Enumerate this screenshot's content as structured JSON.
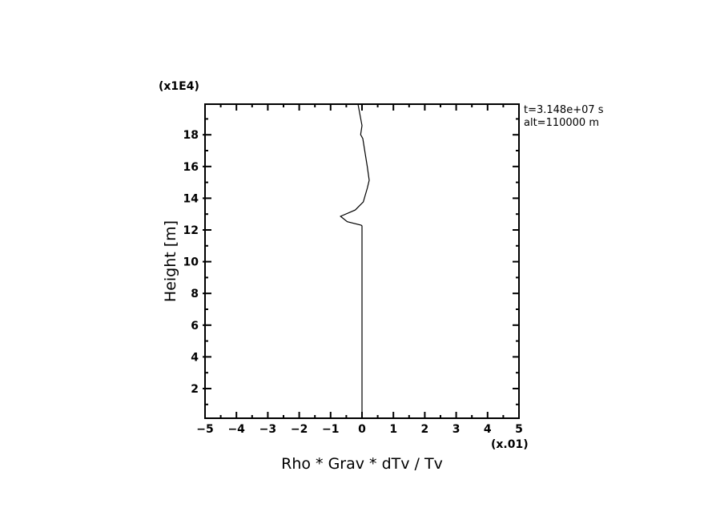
{
  "chart_data": {
    "type": "line",
    "xlabel": "Rho * Grav * dTv / Tv",
    "ylabel": "Height [m]",
    "x_multiplier_label": "(x.01)",
    "y_multiplier_label": "(x1E4)",
    "annotations": [
      "t=3.148e+07 s",
      "alt=110000 m"
    ],
    "xlim": [
      -5,
      5
    ],
    "ylim": [
      0.13,
      19.93
    ],
    "xticks": [
      -5,
      -4,
      -3,
      -2,
      -1,
      0,
      1,
      2,
      3,
      4,
      5
    ],
    "xtick_labels": [
      "-5",
      "-4",
      "-3",
      "-2",
      "-1",
      "0",
      "1",
      "2",
      "3",
      "4",
      "5"
    ],
    "yticks": [
      2,
      4,
      6,
      8,
      10,
      12,
      14,
      16,
      18
    ],
    "ytick_labels": [
      "2",
      "4",
      "6",
      "8",
      "10",
      "12",
      "14",
      "16",
      "18"
    ],
    "grid": false,
    "legend": "none",
    "series": [
      {
        "x": [
          0,
          0,
          -0.026,
          -0.47,
          -0.683,
          -0.215,
          0.041,
          0.169,
          0.23,
          0.169,
          0.026,
          -0.043,
          0,
          -0.128
        ],
        "y": [
          0.13,
          12.25,
          12.3,
          12.52,
          12.86,
          13.26,
          13.77,
          14.63,
          15.13,
          15.99,
          17.76,
          18.01,
          18.58,
          19.93
        ],
        "color": "#000000"
      }
    ]
  }
}
